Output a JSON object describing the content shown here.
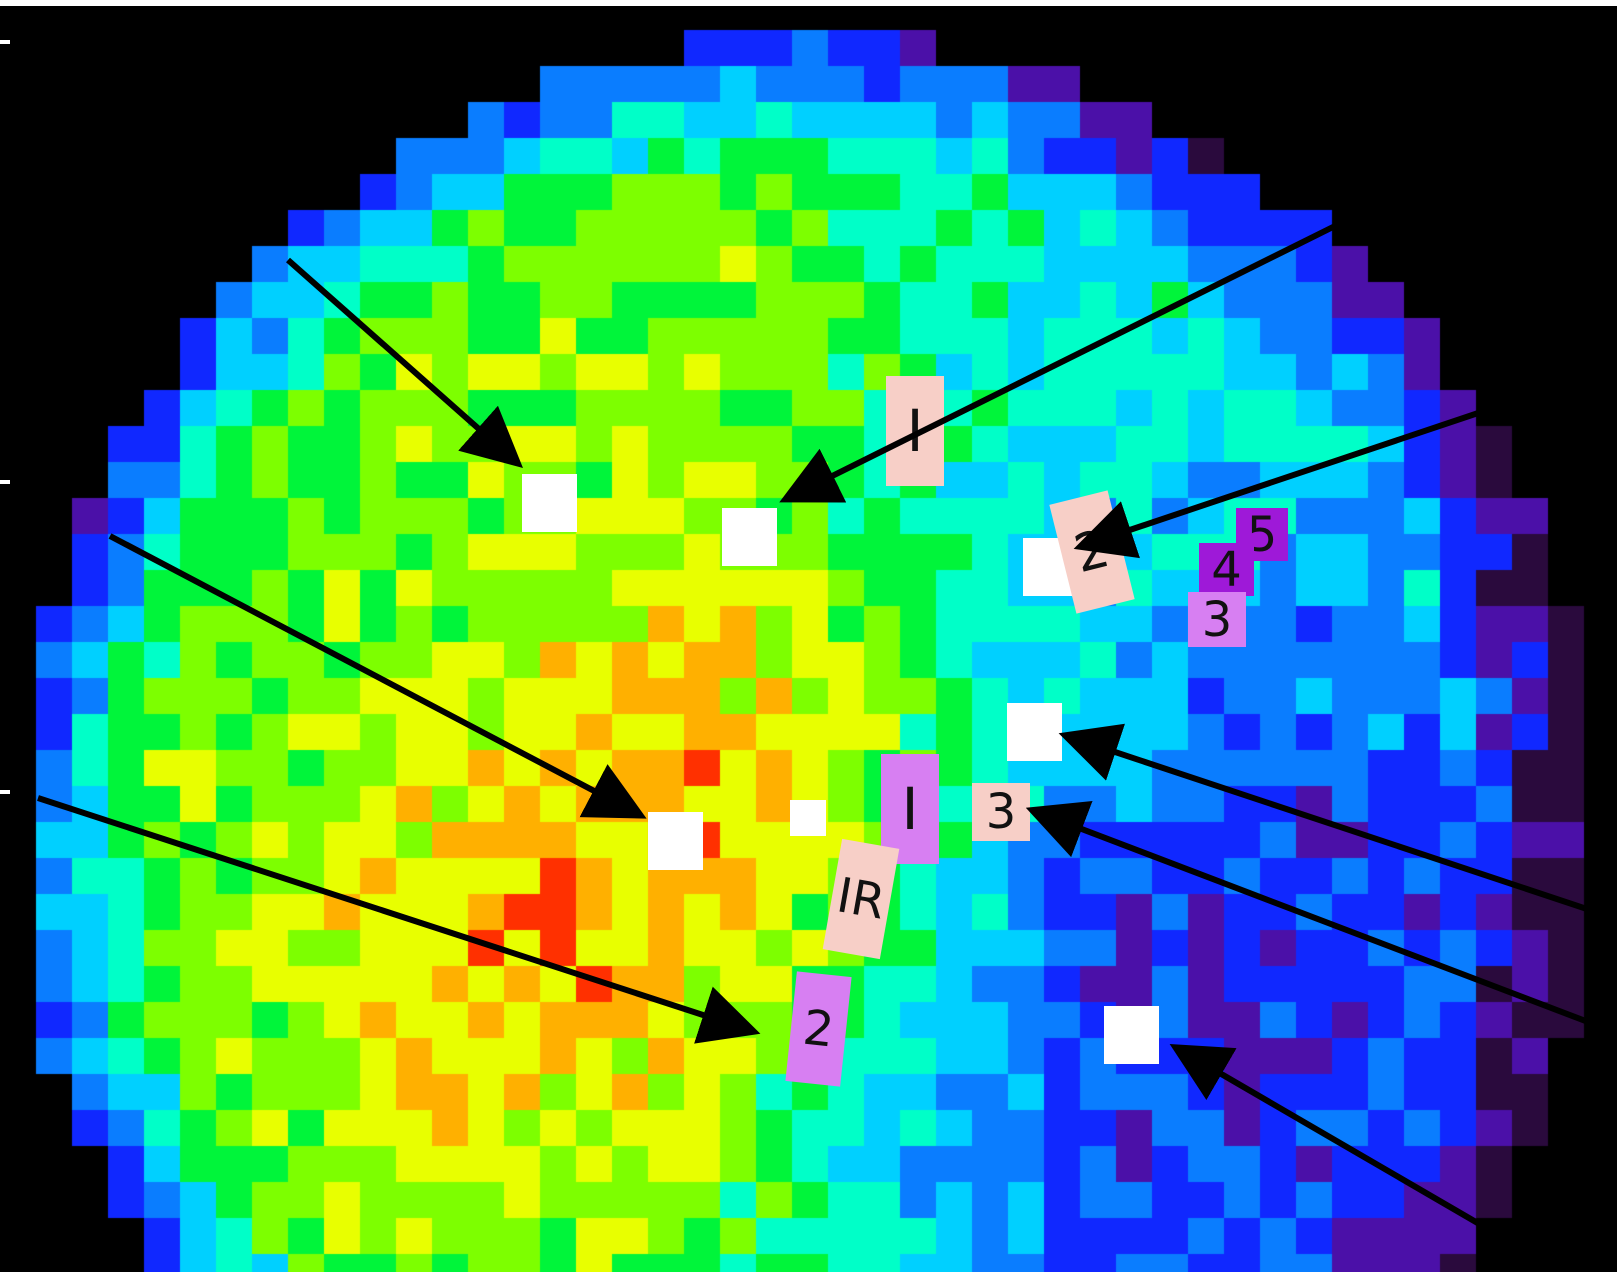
{
  "labels": {
    "upper_I": "I",
    "upper_2": "2",
    "stack_5": "5",
    "stack_4": "4",
    "stack_3": "3",
    "mid_I": "I",
    "mid_3": "3",
    "IR": "IR",
    "lower_2": "2"
  },
  "colors": {
    "background": "#000000",
    "label_pink": "#f7cfc7",
    "label_violet": "#d77ff2",
    "label_purple": "#9e19d8",
    "marker": "#ffffff",
    "arrow": "#000000"
  },
  "colormap": [
    "#2a0a3d",
    "#4b10a8",
    "#1028ff",
    "#0a7dff",
    "#00d0ff",
    "#00ffc8",
    "#00f53a",
    "#7dff00",
    "#e8ff00",
    "#ffb000",
    "#ff3000",
    "#e00000"
  ]
}
